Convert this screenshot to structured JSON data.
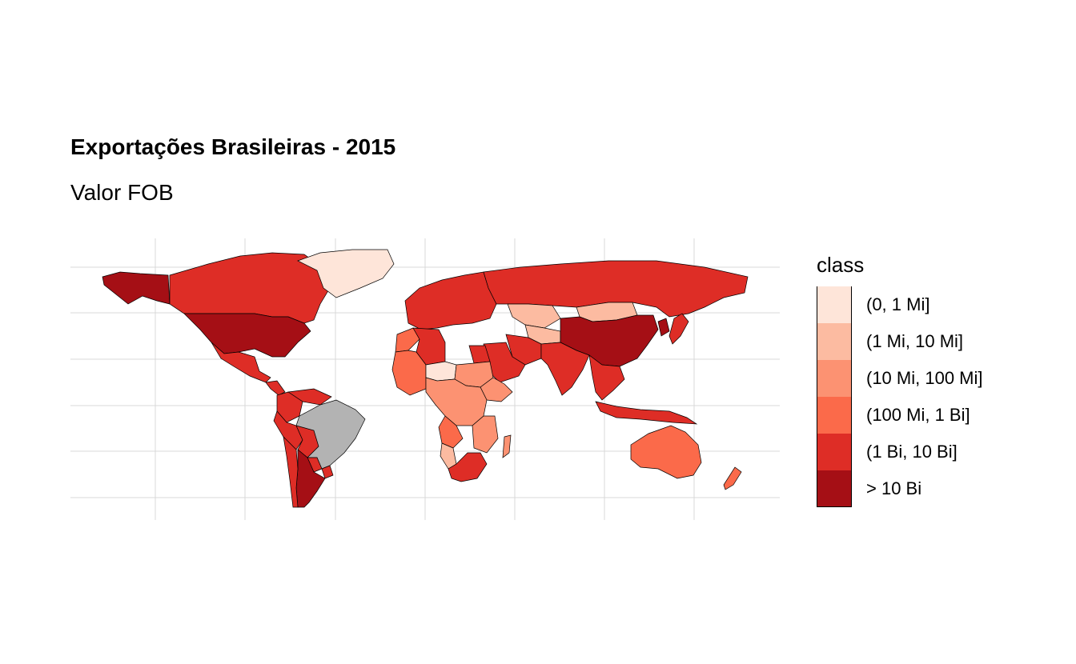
{
  "chart_data": {
    "type": "choropleth",
    "title": "Exportações Brasileiras - 2015",
    "subtitle": "Valor FOB",
    "legend_title": "class",
    "legend_placement": "right",
    "grid": true,
    "no_data_color": "#b3b3b3",
    "classes": [
      {
        "label": "(0, 1 Mi]",
        "color": "#fee5d9"
      },
      {
        "label": "(1 Mi, 10 Mi]",
        "color": "#fcbba1"
      },
      {
        "label": "(10 Mi, 100 Mi]",
        "color": "#fc9272"
      },
      {
        "label": "(100 Mi, 1 Bi]",
        "color": "#fb6a4a"
      },
      {
        "label": "(1 Bi, 10 Bi]",
        "color": "#de2d26"
      },
      {
        "label": "> 10 Bi",
        "color": "#a50f15"
      }
    ],
    "regions": [
      {
        "name": "United States",
        "class": 5
      },
      {
        "name": "Alaska",
        "class": 5
      },
      {
        "name": "China",
        "class": 5
      },
      {
        "name": "Argentina",
        "class": 5
      },
      {
        "name": "Canada",
        "class": 4
      },
      {
        "name": "Mexico",
        "class": 4
      },
      {
        "name": "Russia",
        "class": 4
      },
      {
        "name": "India",
        "class": 4
      },
      {
        "name": "Europe",
        "class": 4
      },
      {
        "name": "Saudi Arabia",
        "class": 4
      },
      {
        "name": "Iran",
        "class": 4
      },
      {
        "name": "Southeast Asia",
        "class": 4
      },
      {
        "name": "Japan",
        "class": 4
      },
      {
        "name": "Korea",
        "class": 5
      },
      {
        "name": "Chile",
        "class": 4
      },
      {
        "name": "Colombia",
        "class": 4
      },
      {
        "name": "Venezuela",
        "class": 4
      },
      {
        "name": "Peru",
        "class": 4
      },
      {
        "name": "Egypt",
        "class": 4
      },
      {
        "name": "South Africa",
        "class": 4
      },
      {
        "name": "Algeria",
        "class": 4
      },
      {
        "name": "Australia",
        "class": 3
      },
      {
        "name": "Morocco",
        "class": 3
      },
      {
        "name": "West Africa",
        "class": 3
      },
      {
        "name": "Central Africa",
        "class": 2
      },
      {
        "name": "Sudan",
        "class": 2
      },
      {
        "name": "Ethiopia",
        "class": 2
      },
      {
        "name": "Angola",
        "class": 3
      },
      {
        "name": "Kazakhstan",
        "class": 1
      },
      {
        "name": "Mongolia",
        "class": 1
      },
      {
        "name": "Central Asia",
        "class": 1
      },
      {
        "name": "Namibia",
        "class": 1
      },
      {
        "name": "Niger",
        "class": 0
      },
      {
        "name": "Greenland",
        "class": 0
      },
      {
        "name": "New Zealand",
        "class": 3
      },
      {
        "name": "Bolivia",
        "class": 4
      },
      {
        "name": "Paraguay",
        "class": 4
      },
      {
        "name": "Uruguay",
        "class": 4
      },
      {
        "name": "Brazil",
        "class": null
      }
    ]
  }
}
